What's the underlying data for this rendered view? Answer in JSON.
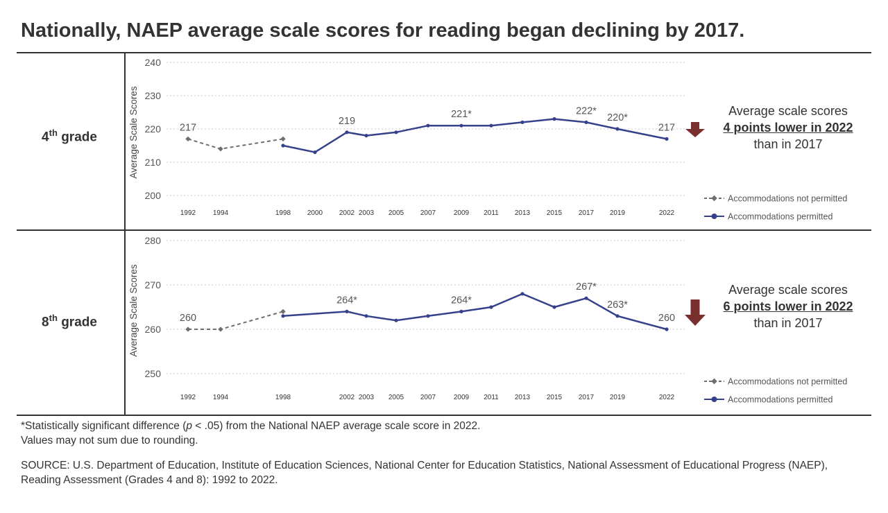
{
  "title": "Nationally, NAEP average scale scores for reading began declining by 2017.",
  "colors": {
    "not_permitted": "#6e6e6e",
    "permitted": "#36418b",
    "arrow": "#7a2f2f",
    "grid": "#c8c8c8"
  },
  "legend": {
    "not_permitted": "Accommodations not permitted",
    "permitted": "Accommodations permitted"
  },
  "chart_data": [
    {
      "type": "line",
      "panel": "4th grade",
      "grade_num": "4",
      "grade_sup": "th",
      "grade_word": "grade",
      "ylabel": "Average Scale Scores",
      "ylim": [
        196,
        241
      ],
      "yticks": [
        200,
        210,
        220,
        230,
        240
      ],
      "x_ticks": [
        "1992",
        "1994",
        "1998",
        "2000",
        "2002",
        "2003",
        "2005",
        "2007",
        "2009",
        "2011",
        "2013",
        "2015",
        "2017",
        "2019",
        "2022"
      ],
      "grid": true,
      "series": [
        {
          "key": "not_permitted",
          "name": "Accommodations not permitted",
          "x": [
            1992,
            1994,
            1998
          ],
          "values": [
            217,
            214,
            217
          ]
        },
        {
          "key": "permitted",
          "name": "Accommodations permitted",
          "x": [
            1998,
            2000,
            2002,
            2003,
            2005,
            2007,
            2009,
            2011,
            2013,
            2015,
            2017,
            2019,
            2022
          ],
          "values": [
            215,
            213,
            219,
            218,
            219,
            221,
            221,
            221,
            222,
            223,
            222,
            220,
            217
          ]
        }
      ],
      "data_labels": [
        {
          "x": 1992,
          "y": 217,
          "text": "217"
        },
        {
          "x": 2002,
          "y": 219,
          "text": "219"
        },
        {
          "x": 2009,
          "y": 221,
          "text": "221*"
        },
        {
          "x": 2017,
          "y": 222,
          "text": "222*"
        },
        {
          "x": 2019,
          "y": 220,
          "text": "220*"
        },
        {
          "x": 2022,
          "y": 217,
          "text": "217"
        }
      ],
      "callout": {
        "line1": "Average scale scores",
        "line2": "4 points lower in 2022",
        "line3": "than in 2017"
      }
    },
    {
      "type": "line",
      "panel": "8th grade",
      "grade_num": "8",
      "grade_sup": "th",
      "grade_word": "grade",
      "ylabel": "Average Scale Scores",
      "ylim": [
        246,
        281
      ],
      "yticks": [
        250,
        260,
        270,
        280
      ],
      "x_ticks": [
        "1992",
        "1994",
        "1998",
        "2002",
        "2003",
        "2005",
        "2007",
        "2009",
        "2011",
        "2013",
        "2015",
        "2017",
        "2019",
        "2022"
      ],
      "grid": true,
      "series": [
        {
          "key": "not_permitted",
          "name": "Accommodations not permitted",
          "x": [
            1992,
            1994,
            1998
          ],
          "values": [
            260,
            260,
            264
          ]
        },
        {
          "key": "permitted",
          "name": "Accommodations permitted",
          "x": [
            1998,
            2002,
            2003,
            2005,
            2007,
            2009,
            2011,
            2013,
            2015,
            2017,
            2019,
            2022
          ],
          "values": [
            263,
            264,
            263,
            262,
            263,
            264,
            265,
            268,
            265,
            267,
            263,
            260
          ]
        }
      ],
      "data_labels": [
        {
          "x": 1992,
          "y": 260,
          "text": "260"
        },
        {
          "x": 2002,
          "y": 264,
          "text": "264*"
        },
        {
          "x": 2009,
          "y": 264,
          "text": "264*"
        },
        {
          "x": 2017,
          "y": 267,
          "text": "267*"
        },
        {
          "x": 2019,
          "y": 263,
          "text": "263*"
        },
        {
          "x": 2022,
          "y": 260,
          "text": "260"
        }
      ],
      "callout": {
        "line1": "Average scale scores",
        "line2": "6 points lower in 2022",
        "line3": "than in 2017"
      }
    }
  ],
  "footnotes": {
    "sig_prefix": "*Statistically significant difference (",
    "sig_p": "p",
    "sig_suffix": " < .05) from the National NAEP average scale score in 2022.",
    "rounding": "Values may not sum due to rounding.",
    "source": "SOURCE: U.S. Department of Education, Institute of Education Sciences, National Center for Education Statistics, National Assessment of Educational Progress (NAEP), Reading Assessment (Grades 4 and 8): 1992 to 2022."
  }
}
